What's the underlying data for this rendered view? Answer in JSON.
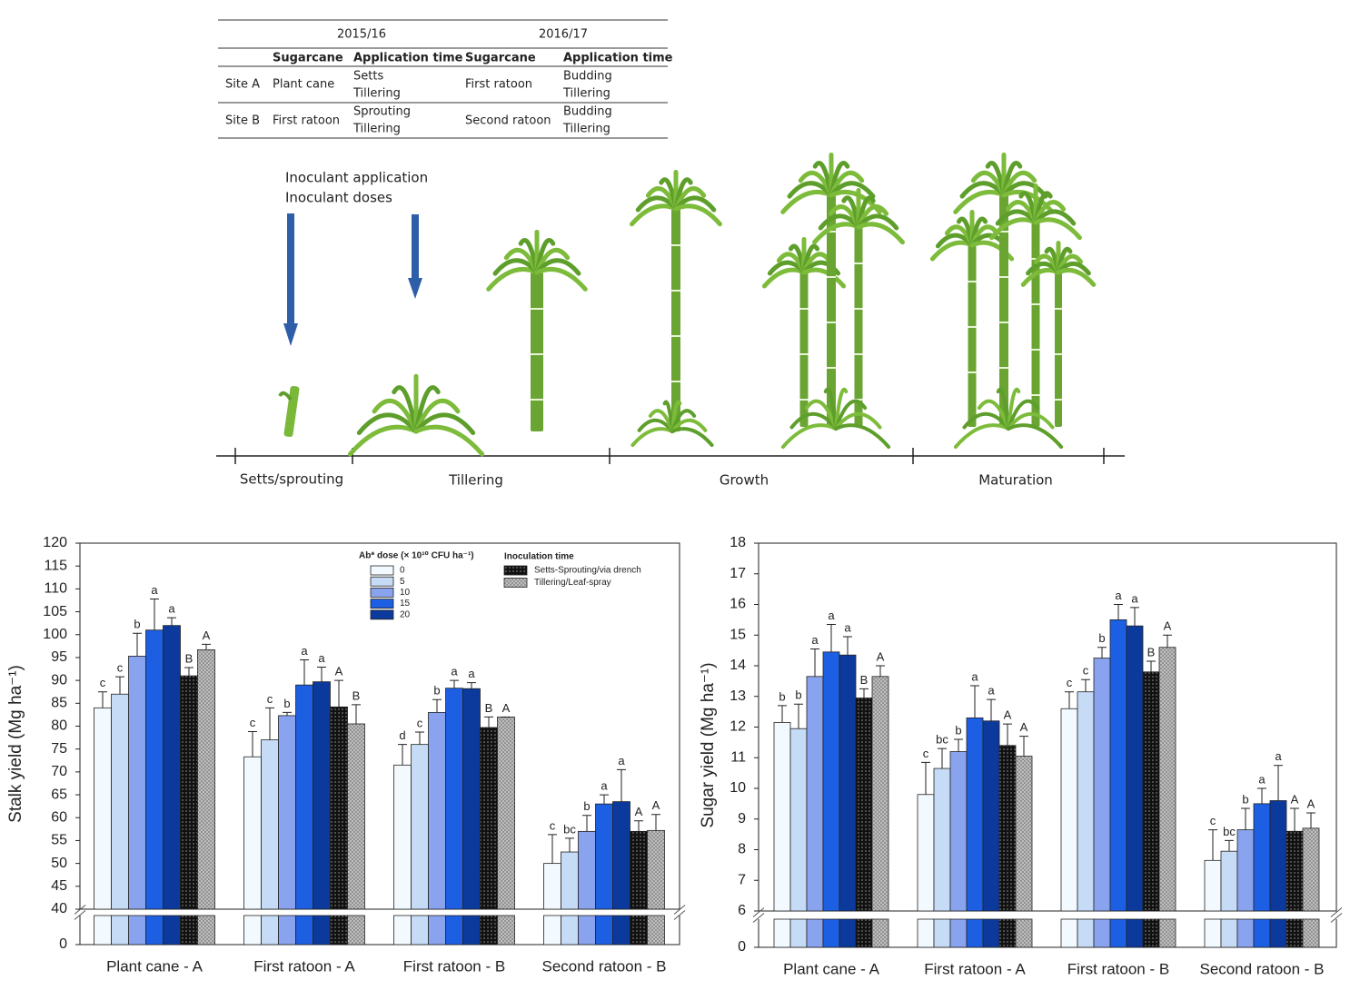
{
  "table": {
    "group_headers": [
      "2015/16",
      "2016/17"
    ],
    "columns": [
      "Sugarcane",
      "Application time",
      "Sugarcane",
      "Application time"
    ],
    "rows": [
      [
        "Site A",
        "Plant cane",
        [
          "Setts",
          "Tillering"
        ],
        "First ratoon",
        [
          "Budding",
          "Tillering"
        ]
      ],
      [
        "Site B",
        "First ratoon",
        [
          "Sprouting",
          "Tillering"
        ],
        "Second ratoon",
        [
          "Budding",
          "Tillering"
        ]
      ]
    ]
  },
  "diagram": {
    "arrow_labels": [
      "Inoculant application",
      "Inoculant doses"
    ],
    "stages": [
      "Setts/sprouting",
      "Tillering",
      "Growth",
      "Maturation"
    ]
  },
  "chart_data": [
    {
      "type": "bar",
      "ylabel": "Stalk yield (Mg ha⁻¹)",
      "categories": [
        "Plant cane - A",
        "First ratoon - A",
        "First ratoon - B",
        "Second ratoon - B"
      ],
      "ylim": [
        40,
        120
      ],
      "yticks": [
        40,
        45,
        50,
        55,
        60,
        65,
        70,
        75,
        80,
        85,
        90,
        95,
        100,
        105,
        110,
        115,
        120
      ],
      "lower_yticks": [
        0
      ],
      "grid": false,
      "legend": {
        "dose": "Ab* dose (× 10¹⁰ CFU ha⁻¹)",
        "time": "Inoculation time"
      },
      "series": [
        {
          "name": "0",
          "kind": "dose",
          "color": "#f3faff",
          "values": [
            84,
            73.3,
            71.5,
            50
          ],
          "errors": [
            3.5,
            5.5,
            4.5,
            6.3
          ],
          "letters": [
            "c",
            "c",
            "d",
            "c"
          ]
        },
        {
          "name": "5",
          "kind": "dose",
          "color": "#c6dbf6",
          "values": [
            87,
            77,
            76,
            52.5
          ],
          "errors": [
            3.8,
            7,
            2.7,
            3
          ],
          "letters": [
            "c",
            "c",
            "c",
            "bc"
          ]
        },
        {
          "name": "10",
          "kind": "dose",
          "color": "#8aa3ee",
          "values": [
            95.3,
            82.3,
            83,
            57
          ],
          "errors": [
            5,
            0.7,
            2.8,
            3.5
          ],
          "letters": [
            "b",
            "b",
            "b",
            "b"
          ]
        },
        {
          "name": "15",
          "kind": "dose",
          "color": "#1d5fe2",
          "values": [
            101,
            89,
            88.3,
            63
          ],
          "errors": [
            6.8,
            5.5,
            1.7,
            2
          ],
          "letters": [
            "a",
            "a",
            "a",
            "a"
          ]
        },
        {
          "name": "20",
          "kind": "dose",
          "color": "#0c3a9c",
          "values": [
            102,
            89.7,
            88.2,
            63.5
          ],
          "errors": [
            1.7,
            3.2,
            1.3,
            7
          ],
          "letters": [
            "a",
            "a",
            "a",
            "a"
          ]
        },
        {
          "name": "Setts-Sprouting/via drench",
          "kind": "time",
          "color": "#111111",
          "pattern": "dots",
          "values": [
            91,
            84.2,
            79.7,
            57
          ],
          "errors": [
            1.8,
            5.8,
            2.3,
            2.3
          ],
          "letters": [
            "B",
            "A",
            "B",
            "A"
          ]
        },
        {
          "name": "Tillering/Leaf-spray",
          "kind": "time",
          "color": "#8a8a8a",
          "pattern": "crosshatch",
          "values": [
            96.7,
            80.5,
            82,
            57.2
          ],
          "errors": [
            1.2,
            4.2,
            0,
            3.5
          ],
          "letters": [
            "A",
            "B",
            "A",
            "A"
          ]
        }
      ]
    },
    {
      "type": "bar",
      "ylabel": "Sugar yield (Mg ha⁻¹)",
      "categories": [
        "Plant cane - A",
        "First ratoon - A",
        "First ratoon - B",
        "Second ratoon - B"
      ],
      "ylim": [
        6,
        18
      ],
      "yticks": [
        6,
        7,
        8,
        9,
        10,
        11,
        12,
        13,
        14,
        15,
        16,
        17,
        18
      ],
      "lower_yticks": [
        0
      ],
      "grid": false,
      "series": [
        {
          "color": "#f3faff",
          "values": [
            12.15,
            9.8,
            12.6,
            7.65
          ],
          "errors": [
            0.55,
            1.05,
            0.55,
            1.0
          ],
          "letters": [
            "b",
            "c",
            "c",
            "c"
          ]
        },
        {
          "color": "#c6dbf6",
          "values": [
            11.95,
            10.65,
            13.15,
            7.95
          ],
          "errors": [
            0.8,
            0.65,
            0.4,
            0.35
          ],
          "letters": [
            "b",
            "bc",
            "c",
            "bc"
          ]
        },
        {
          "color": "#8aa3ee",
          "values": [
            13.65,
            11.2,
            14.25,
            8.65
          ],
          "errors": [
            0.9,
            0.4,
            0.35,
            0.7
          ],
          "letters": [
            "a",
            "b",
            "b",
            "b"
          ]
        },
        {
          "color": "#1d5fe2",
          "values": [
            14.45,
            12.3,
            15.5,
            9.5
          ],
          "errors": [
            0.9,
            1.05,
            0.5,
            0.5
          ],
          "letters": [
            "a",
            "a",
            "a",
            "a"
          ]
        },
        {
          "color": "#0c3a9c",
          "values": [
            14.35,
            12.2,
            15.3,
            9.6
          ],
          "errors": [
            0.6,
            0.7,
            0.6,
            1.15
          ],
          "letters": [
            "a",
            "a",
            "a",
            "a"
          ]
        },
        {
          "color": "#111111",
          "pattern": "dots",
          "values": [
            12.95,
            11.4,
            13.8,
            8.6
          ],
          "errors": [
            0.3,
            0.7,
            0.35,
            0.75
          ],
          "letters": [
            "B",
            "A",
            "B",
            "A"
          ]
        },
        {
          "color": "#8a8a8a",
          "pattern": "crosshatch",
          "values": [
            13.65,
            11.05,
            14.6,
            8.7
          ],
          "errors": [
            0.35,
            0.65,
            0.4,
            0.5
          ],
          "letters": [
            "A",
            "A",
            "A",
            "A"
          ]
        }
      ]
    }
  ]
}
